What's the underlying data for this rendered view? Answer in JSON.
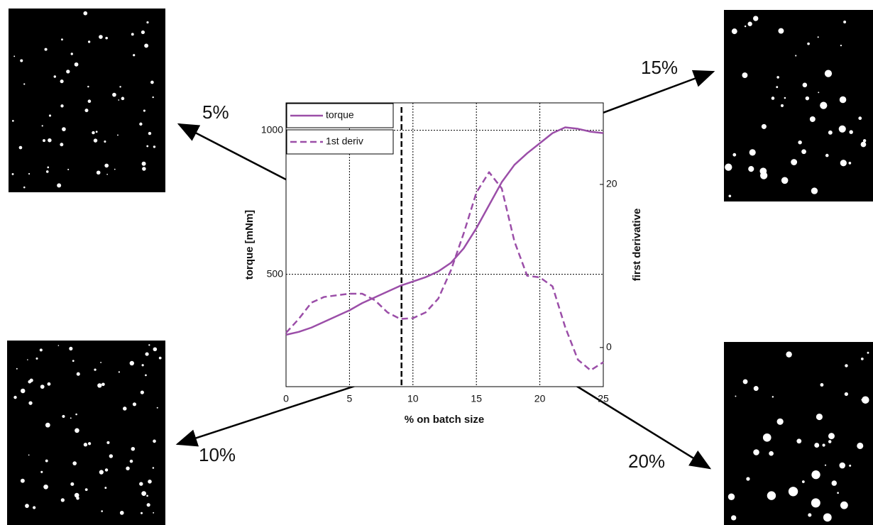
{
  "chart_data": {
    "type": "line",
    "x_label": "% on batch size",
    "y_label": "torque [mNm]",
    "y2_label": "first derivative",
    "x": [
      0,
      1,
      2,
      3,
      4,
      5,
      6,
      7,
      8,
      9,
      10,
      11,
      12,
      13,
      14,
      15,
      16,
      17,
      18,
      19,
      20,
      21,
      22,
      23,
      24,
      25
    ],
    "series": [
      {
        "name": "torque",
        "color": "#9b4ea8",
        "dashed": false,
        "axis": "y",
        "values": [
          290,
          300,
          315,
          335,
          355,
          375,
          400,
          420,
          440,
          460,
          475,
          490,
          510,
          540,
          590,
          660,
          740,
          820,
          880,
          920,
          955,
          990,
          1010,
          1005,
          995,
          990
        ]
      },
      {
        "name": "1st deriv",
        "color": "#9b4ea8",
        "dashed": true,
        "axis": "y2",
        "values": [
          1.8,
          3.5,
          5.5,
          6.2,
          6.4,
          6.6,
          6.6,
          5.8,
          4.3,
          3.5,
          3.6,
          4.3,
          6,
          9.5,
          14,
          19,
          21.5,
          19.5,
          13,
          8.8,
          8.6,
          7.5,
          2.5,
          -1.5,
          -2.8,
          -1.8
        ]
      }
    ],
    "xlim": [
      0,
      25
    ],
    "xticks": [
      0,
      5,
      10,
      15,
      20,
      25
    ],
    "ylim": [
      110,
      1095
    ],
    "yticks": [
      500,
      1000
    ],
    "y2lim": [
      -4.8,
      30
    ],
    "y2ticks": [
      0,
      20
    ],
    "grid": true,
    "legend": "upper left",
    "reference_line": {
      "x": 9.1,
      "color": "#000000"
    },
    "annotations": [
      "5%",
      "10%",
      "15%",
      "20%"
    ]
  }
}
